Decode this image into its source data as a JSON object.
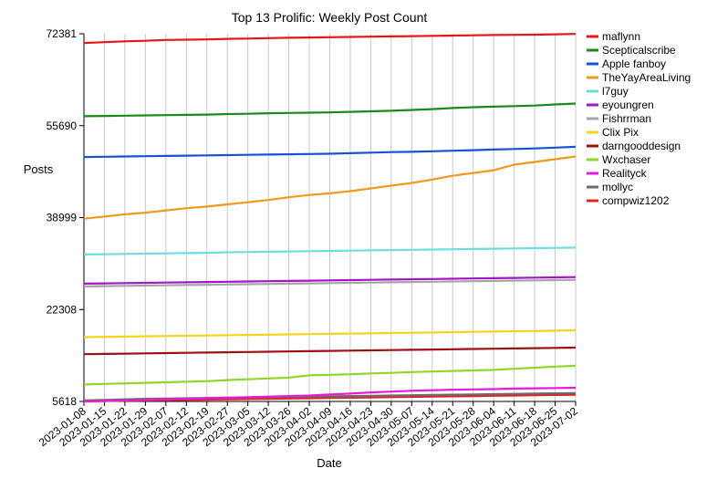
{
  "chart_data": {
    "type": "line",
    "title": "Top 13 Prolific: Weekly Post Count",
    "xlabel": "Date",
    "ylabel": "Posts",
    "ylim": [
      5618,
      72381
    ],
    "yticks": [
      5618,
      22308,
      38999,
      55690,
      72381
    ],
    "grid": "vertical",
    "legend_position": "right",
    "x": [
      "2023-01-08",
      "2023-01-15",
      "2023-01-22",
      "2023-01-29",
      "2023-02-07",
      "2023-02-12",
      "2023-02-19",
      "2023-02-27",
      "2023-03-05",
      "2023-03-12",
      "2023-03-26",
      "2023-04-02",
      "2023-04-09",
      "2023-04-16",
      "2023-04-23",
      "2023-04-30",
      "2023-05-07",
      "2023-05-14",
      "2023-05-21",
      "2023-05-28",
      "2023-06-04",
      "2023-06-11",
      "2023-06-18",
      "2023-06-25",
      "2023-07-02"
    ],
    "series": [
      {
        "name": "maflynn",
        "color": "#e8151b",
        "values": [
          70700,
          70850,
          71000,
          71100,
          71250,
          71300,
          71350,
          71450,
          71500,
          71580,
          71650,
          71700,
          71750,
          71800,
          71850,
          71900,
          71950,
          72000,
          72050,
          72100,
          72150,
          72180,
          72220,
          72280,
          72350
        ]
      },
      {
        "name": "Scepticalscribe",
        "color": "#1a8a1a",
        "values": [
          57400,
          57450,
          57500,
          57550,
          57600,
          57650,
          57700,
          57800,
          57850,
          57950,
          58000,
          58050,
          58100,
          58200,
          58300,
          58400,
          58550,
          58700,
          58900,
          59050,
          59150,
          59250,
          59350,
          59550,
          59700
        ]
      },
      {
        "name": "Apple fanboy",
        "color": "#1552d6",
        "values": [
          50000,
          50050,
          50100,
          50150,
          50200,
          50250,
          50300,
          50350,
          50400,
          50450,
          50500,
          50550,
          50600,
          50700,
          50800,
          50900,
          50950,
          51050,
          51150,
          51250,
          51350,
          51450,
          51550,
          51700,
          51850
        ]
      },
      {
        "name": "TheYayAreaLiving",
        "color": "#f2981e",
        "values": [
          38800,
          39200,
          39600,
          39900,
          40300,
          40700,
          41000,
          41400,
          41800,
          42200,
          42700,
          43100,
          43400,
          43800,
          44300,
          44800,
          45300,
          45900,
          46600,
          47100,
          47600,
          48600,
          49100,
          49600,
          50100
        ]
      },
      {
        "name": "l7guy",
        "color": "#6fdde0",
        "values": [
          32300,
          32350,
          32400,
          32450,
          32500,
          32550,
          32600,
          32700,
          32750,
          32800,
          32850,
          32900,
          32950,
          33000,
          33050,
          33100,
          33150,
          33200,
          33250,
          33300,
          33350,
          33400,
          33450,
          33500,
          33550
        ]
      },
      {
        "name": "eyoungren",
        "color": "#a416c9",
        "values": [
          27000,
          27050,
          27100,
          27150,
          27200,
          27250,
          27300,
          27350,
          27400,
          27450,
          27500,
          27550,
          27600,
          27650,
          27700,
          27750,
          27800,
          27850,
          27900,
          27950,
          28000,
          28050,
          28100,
          28150,
          28200
        ]
      },
      {
        "name": "Fishrrman",
        "color": "#a6a6a6",
        "values": [
          26500,
          26550,
          26600,
          26650,
          26700,
          26750,
          26800,
          26850,
          26900,
          26950,
          27000,
          27050,
          27100,
          27150,
          27200,
          27250,
          27300,
          27350,
          27400,
          27450,
          27500,
          27550,
          27600,
          27650,
          27700
        ]
      },
      {
        "name": "Clix Pix",
        "color": "#f7d31b",
        "values": [
          17300,
          17350,
          17400,
          17450,
          17500,
          17550,
          17600,
          17650,
          17700,
          17750,
          17800,
          17850,
          17900,
          17950,
          18000,
          18050,
          18100,
          18150,
          18200,
          18250,
          18300,
          18350,
          18400,
          18450,
          18550
        ]
      },
      {
        "name": "darngooddesign",
        "color": "#a10f14",
        "values": [
          14200,
          14250,
          14300,
          14350,
          14400,
          14450,
          14500,
          14550,
          14600,
          14650,
          14700,
          14750,
          14800,
          14850,
          14900,
          14950,
          15000,
          15050,
          15100,
          15150,
          15200,
          15250,
          15300,
          15350,
          15400
        ]
      },
      {
        "name": "Wxchaser",
        "color": "#8fd82a",
        "values": [
          8700,
          8800,
          8900,
          9000,
          9100,
          9200,
          9300,
          9500,
          9650,
          9800,
          9950,
          10350,
          10450,
          10550,
          10700,
          10800,
          10950,
          11050,
          11150,
          11250,
          11350,
          11550,
          11750,
          11950,
          12100
        ]
      },
      {
        "name": "Realityck",
        "color": "#ec18d8",
        "values": [
          5618,
          5700,
          5800,
          5900,
          6000,
          6100,
          6200,
          6300,
          6400,
          6500,
          6600,
          6700,
          6900,
          7050,
          7250,
          7400,
          7550,
          7650,
          7750,
          7800,
          7850,
          7950,
          8000,
          8050,
          8100
        ]
      },
      {
        "name": "mollyc",
        "color": "#6b6b6b",
        "values": [
          5800,
          5900,
          6000,
          6100,
          6150,
          6200,
          6250,
          6300,
          6350,
          6400,
          6450,
          6500,
          6550,
          6600,
          6650,
          6700,
          6750,
          6800,
          6850,
          6900,
          6950,
          7000,
          7050,
          7100,
          7150
        ]
      },
      {
        "name": "compwiz1202",
        "color": "#e0242a",
        "values": [
          5650,
          5700,
          5750,
          5800,
          5850,
          5900,
          5950,
          6000,
          6050,
          6100,
          6150,
          6200,
          6250,
          6300,
          6350,
          6400,
          6450,
          6500,
          6550,
          6600,
          6650,
          6700,
          6750,
          6800,
          6850
        ]
      }
    ]
  }
}
